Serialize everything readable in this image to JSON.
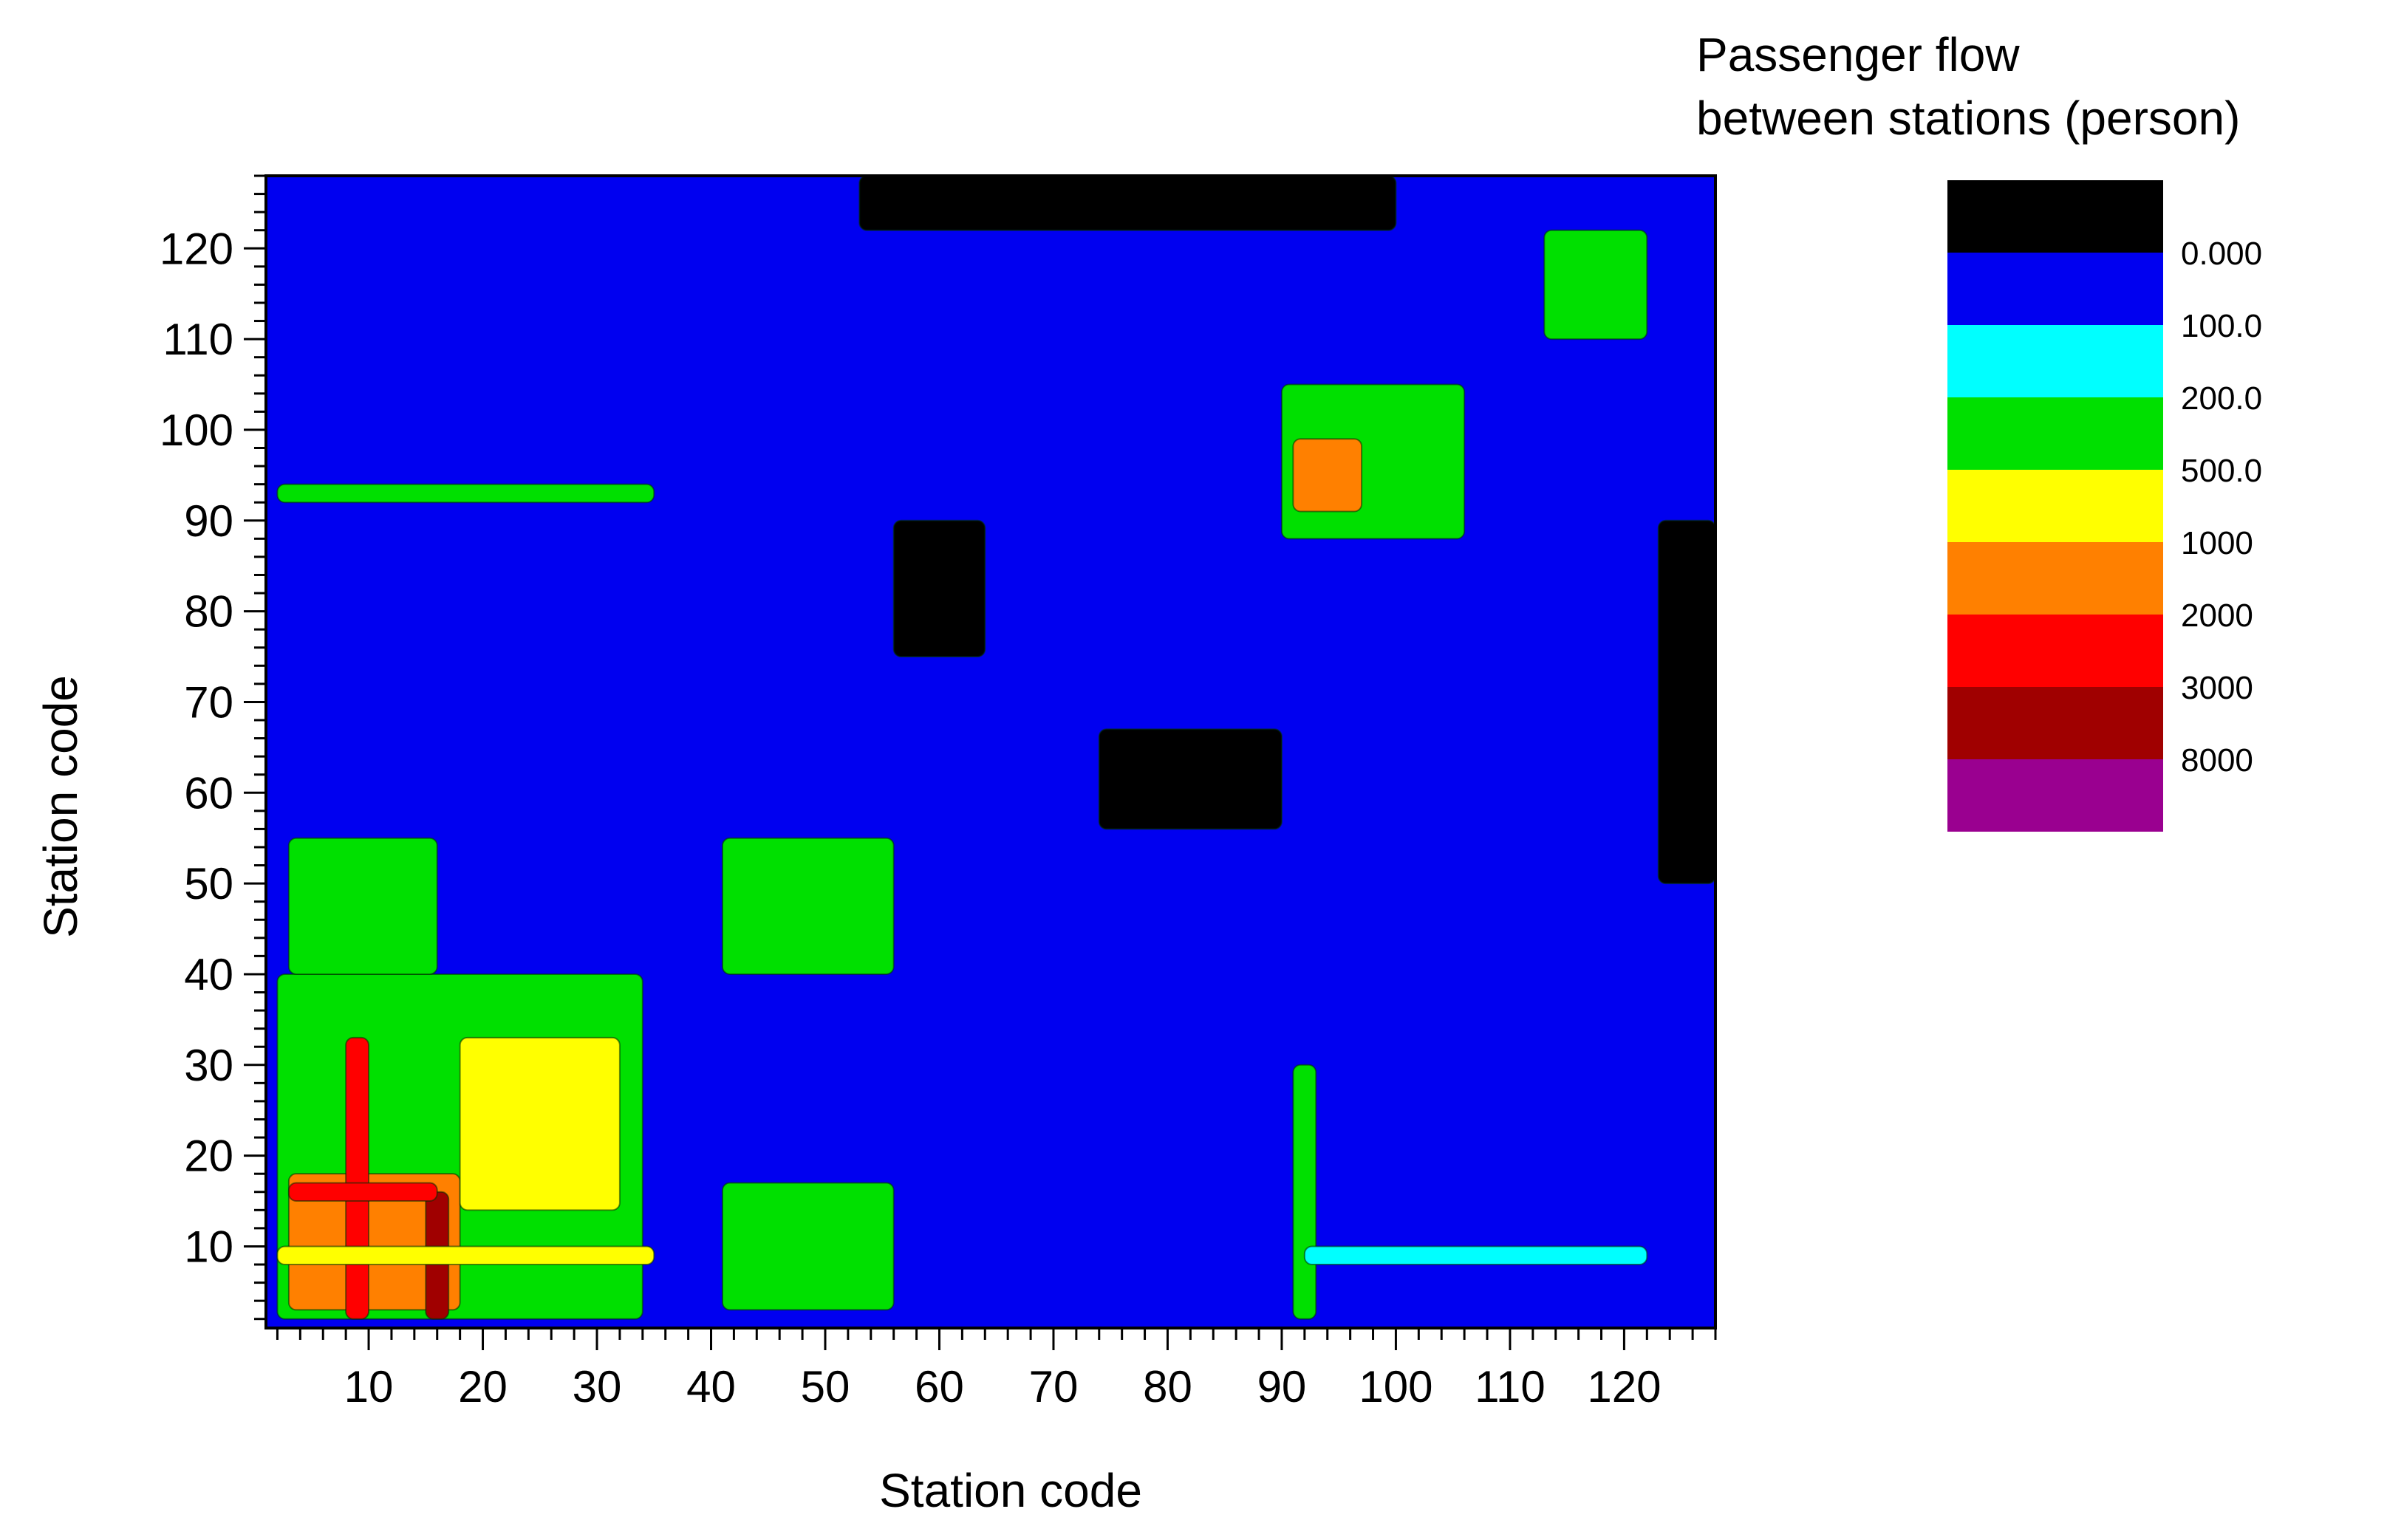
{
  "chart_data": {
    "type": "heatmap",
    "title": "",
    "xlabel": "Station code",
    "ylabel": "Station code",
    "xlim": [
      1,
      128
    ],
    "ylim": [
      1,
      128
    ],
    "x_ticks": [
      10,
      20,
      30,
      40,
      50,
      60,
      70,
      80,
      90,
      100,
      110,
      120
    ],
    "x_tick_labels": [
      "10",
      "20",
      "30",
      "40",
      "50",
      "60",
      "70",
      "80",
      "90",
      "100",
      "110",
      "120"
    ],
    "y_ticks": [
      10,
      20,
      30,
      40,
      50,
      60,
      70,
      80,
      90,
      100,
      110,
      120
    ],
    "y_tick_labels": [
      "10",
      "20",
      "30",
      "40",
      "50",
      "60",
      "70",
      "80",
      "90",
      "100",
      "110",
      "120"
    ],
    "grid": false,
    "colorbar": {
      "title": [
        "Passenger flow",
        "between stations (person)"
      ],
      "unit": "person",
      "placement": "right",
      "levels": [
        "0.000",
        "100.0",
        "200.0",
        "500.0",
        "1000",
        "2000",
        "3000",
        "8000"
      ],
      "colors": [
        "#000000",
        "#0000f0",
        "#00ffff",
        "#00e000",
        "#ffff00",
        "#ff8000",
        "#ff0000",
        "#a00000",
        "#9a0090"
      ]
    },
    "background_level_color": "#0000f0",
    "regions": [
      {
        "x": [
          2,
          34
        ],
        "y": [
          2,
          40
        ],
        "level": "200-500"
      },
      {
        "x": [
          3,
          18
        ],
        "y": [
          3,
          18
        ],
        "level": "1000-2000"
      },
      {
        "x": [
          18,
          32
        ],
        "y": [
          14,
          33
        ],
        "level": "500-1000"
      },
      {
        "x": [
          8,
          10
        ],
        "y": [
          2,
          33
        ],
        "level": "2000-3000"
      },
      {
        "x": [
          15,
          17
        ],
        "y": [
          2,
          16
        ],
        "level": "3000-8000"
      },
      {
        "x": [
          3,
          16
        ],
        "y": [
          15,
          17
        ],
        "level": "2000-3000"
      },
      {
        "x": [
          3,
          16
        ],
        "y": [
          40,
          55
        ],
        "level": "200-500"
      },
      {
        "x": [
          41,
          56
        ],
        "y": [
          40,
          55
        ],
        "level": "200-500"
      },
      {
        "x": [
          41,
          56
        ],
        "y": [
          3,
          17
        ],
        "level": "200-500"
      },
      {
        "x": [
          90,
          106
        ],
        "y": [
          88,
          105
        ],
        "level": "200-500"
      },
      {
        "x": [
          91,
          97
        ],
        "y": [
          91,
          99
        ],
        "level": "1000-2000"
      },
      {
        "x": [
          2,
          35
        ],
        "y": [
          92,
          94
        ],
        "level": "200-500"
      },
      {
        "x": [
          2,
          35
        ],
        "y": [
          8,
          10
        ],
        "level": "500-1000"
      },
      {
        "x": [
          91,
          93
        ],
        "y": [
          2,
          30
        ],
        "level": "200-500"
      },
      {
        "x": [
          92,
          122
        ],
        "y": [
          8,
          10
        ],
        "level": "100-200"
      },
      {
        "x": [
          113,
          122
        ],
        "y": [
          110,
          122
        ],
        "level": "200-500"
      },
      {
        "x": [
          56,
          64
        ],
        "y": [
          75,
          90
        ],
        "level": "<0"
      },
      {
        "x": [
          74,
          90
        ],
        "y": [
          56,
          67
        ],
        "level": "<0"
      },
      {
        "x": [
          53,
          100
        ],
        "y": [
          122,
          128
        ],
        "level": "<0"
      },
      {
        "x": [
          123,
          128
        ],
        "y": [
          50,
          90
        ],
        "level": "<0"
      }
    ]
  }
}
